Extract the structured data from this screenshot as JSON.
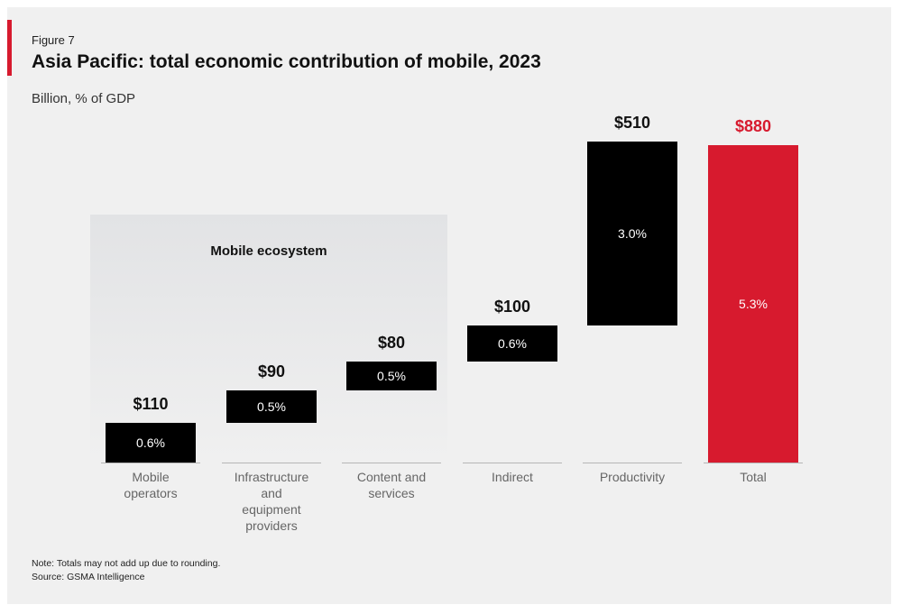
{
  "header": {
    "figure_label": "Figure 7",
    "title": "Asia Pacific: total economic contribution of mobile, 2023",
    "subtitle": "Billion, % of GDP"
  },
  "footer": {
    "note": "Note: Totals may not add up due to rounding.",
    "source": "Source: GSMA Intelligence"
  },
  "colors": {
    "accent": "#d71a2e",
    "bar": "#000000",
    "total": "#d71a2e",
    "ecosystem_bg": "#e2e3e5"
  },
  "chart_data": {
    "type": "bar",
    "subtype": "waterfall",
    "unit": "Billion USD",
    "ylim": [
      0,
      880
    ],
    "ecosystem_group_label": "Mobile ecosystem",
    "categories": [
      [
        "Mobile",
        "operators"
      ],
      [
        "Infrastructure",
        "and",
        "equipment",
        "providers"
      ],
      [
        "Content and",
        "services"
      ],
      [
        "Indirect"
      ],
      [
        "Productivity"
      ],
      [
        "Total"
      ]
    ],
    "values": [
      110,
      90,
      80,
      100,
      510,
      880
    ],
    "value_labels": [
      "$110",
      "$90",
      "$80",
      "$100",
      "$510",
      "$880"
    ],
    "gdp_share_labels": [
      "0.6%",
      "0.5%",
      "0.5%",
      "0.6%",
      "3.0%",
      "5.3%"
    ],
    "is_total": [
      false,
      false,
      false,
      false,
      false,
      true
    ],
    "ecosystem_members": [
      true,
      true,
      true,
      false,
      false,
      false
    ]
  }
}
